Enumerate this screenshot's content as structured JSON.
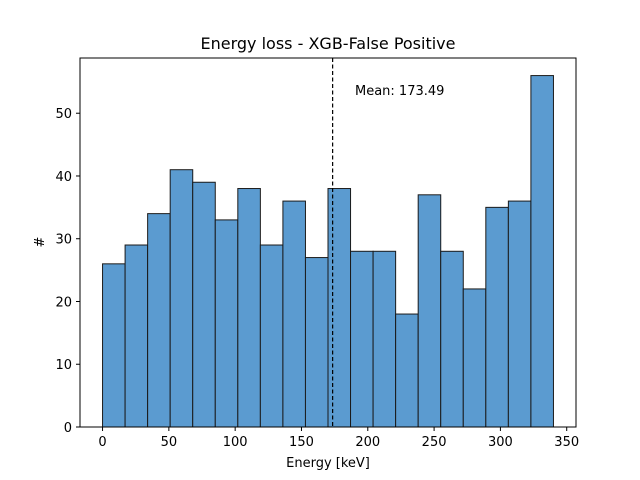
{
  "chart_data": {
    "type": "bar",
    "title": "Energy loss - XGB-False Positive",
    "xlabel": "Energy [keV]",
    "ylabel": "#",
    "bar_color": "#5b9bd0",
    "edge_color": "#1a1a1a",
    "bin_edges": [
      0,
      17,
      34,
      51,
      68,
      85,
      102,
      119,
      136,
      153,
      170,
      187,
      204,
      221,
      238,
      255,
      272,
      289,
      306,
      323,
      340
    ],
    "values": [
      26,
      29,
      34,
      41,
      39,
      33,
      38,
      29,
      36,
      27,
      38,
      28,
      28,
      18,
      37,
      28,
      22,
      35,
      36,
      56
    ],
    "xlim": [
      -17,
      357
    ],
    "ylim": [
      0,
      58.8
    ],
    "xticks": [
      0,
      50,
      100,
      150,
      200,
      250,
      300,
      350
    ],
    "yticks": [
      0,
      10,
      20,
      30,
      40,
      50
    ],
    "mean": 173.49,
    "mean_label": "Mean: 173.49",
    "grid": false
  }
}
